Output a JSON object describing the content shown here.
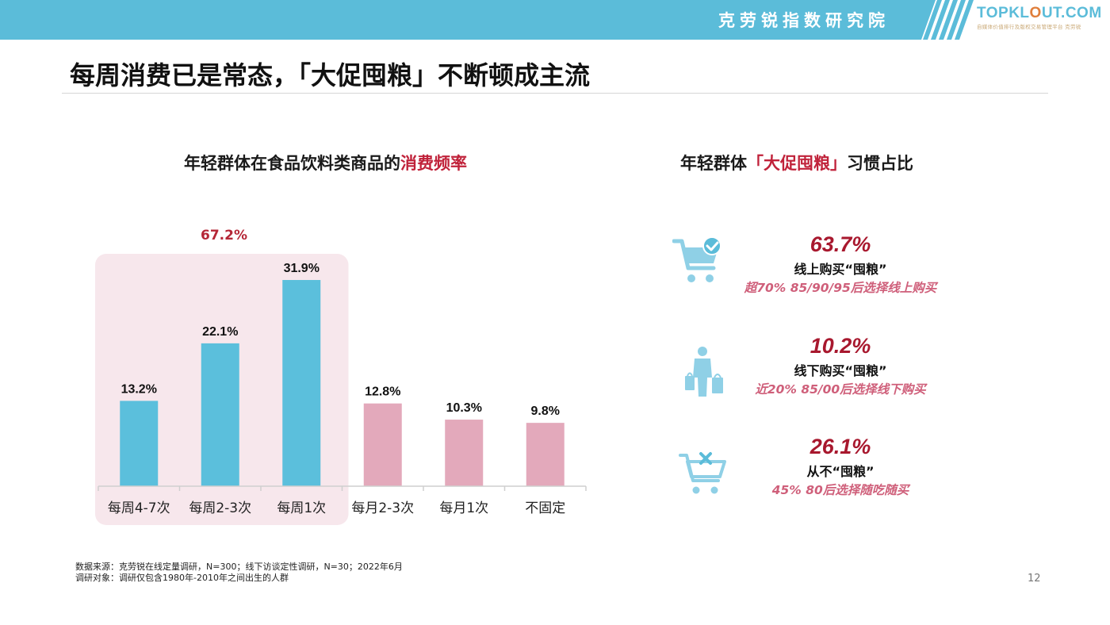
{
  "header": {
    "org_name": "克劳锐指数研究院",
    "logo_text_a": "TOPKL",
    "logo_text_b": "O",
    "logo_text_c": "UT.COM",
    "logo_subtitle": "自媒体价值排行及版权交易管理平台 克劳锐",
    "bar_color": "#5bbcd9"
  },
  "page_title": "每周消费已是常态，「大促囤粮」不断顿成主流",
  "left_panel": {
    "title_prefix": "年轻群体在食品饮料类商品的",
    "title_highlight": "消费频率",
    "group_label": "67.2%"
  },
  "chart_data": {
    "type": "bar",
    "categories": [
      "每周4-7次",
      "每周2-3次",
      "每周1次",
      "每月2-3次",
      "每月1次",
      "不固定"
    ],
    "values": [
      13.2,
      22.1,
      31.9,
      12.8,
      10.3,
      9.8
    ],
    "value_labels": [
      "13.2%",
      "22.1%",
      "31.9%",
      "12.8%",
      "10.3%",
      "9.8%"
    ],
    "colors": [
      "#5bbfdc",
      "#5bbfdc",
      "#5bbfdc",
      "#e3a9bb",
      "#e3a9bb",
      "#e3a9bb"
    ],
    "highlight_range": [
      0,
      2
    ],
    "highlight_color": "#f7e7ec",
    "ylim": [
      0,
      35
    ],
    "grid": false,
    "title": "年轻群体在食品饮料类商品的消费频率"
  },
  "right_panel": {
    "title_prefix": "年轻群体",
    "title_highlight": "「大促囤粮」",
    "title_suffix": "习惯占比",
    "stats": [
      {
        "value": "63.7%",
        "label": "线上购买“囤粮”",
        "note": "超70% 85/90/95后选择线上购买",
        "icon": "cart-check-icon"
      },
      {
        "value": "10.2%",
        "label": "线下购买“囤粮”",
        "note": "近20% 85/00后选择线下购买",
        "icon": "shopper-bags-icon"
      },
      {
        "value": "26.1%",
        "label": "从不“囤粮”",
        "note": "45% 80后选择随吃随买",
        "icon": "cart-cross-icon"
      }
    ]
  },
  "footer": {
    "source": "数据来源：克劳锐在线定量调研，N=300；线下访谈定性调研，N=30；2022年6月",
    "subject": "调研对象：调研仅包含1980年-2010年之间出生的人群"
  },
  "page_number": "12"
}
